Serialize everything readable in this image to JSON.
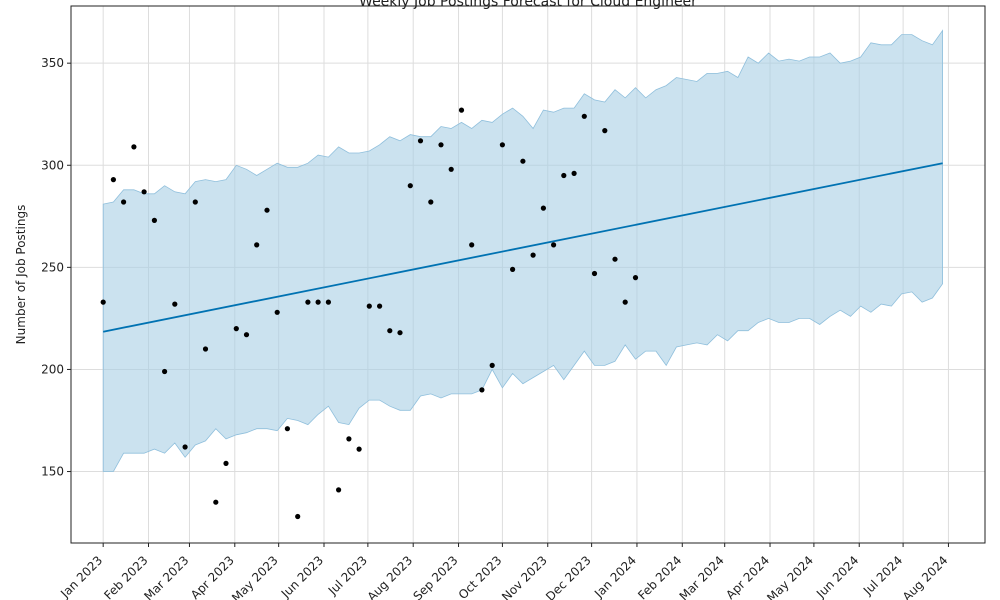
{
  "chart_data": {
    "type": "line",
    "title": "Weekly Job Postings Forecast for Cloud Engineer",
    "xlabel": "",
    "ylabel": "Number of Job Postings",
    "ylim": [
      115,
      378
    ],
    "xlim": [
      "2022-12-10",
      "2024-08-26"
    ],
    "grid": true,
    "y_ticks": [
      150,
      200,
      250,
      300,
      350
    ],
    "x_ticks": [
      {
        "label": "Jan 2023",
        "date": "2023-01-01"
      },
      {
        "label": "Feb 2023",
        "date": "2023-02-01"
      },
      {
        "label": "Mar 2023",
        "date": "2023-03-01"
      },
      {
        "label": "Apr 2023",
        "date": "2023-04-01"
      },
      {
        "label": "May 2023",
        "date": "2023-05-01"
      },
      {
        "label": "Jun 2023",
        "date": "2023-06-01"
      },
      {
        "label": "Jul 2023",
        "date": "2023-07-01"
      },
      {
        "label": "Aug 2023",
        "date": "2023-08-01"
      },
      {
        "label": "Sep 2023",
        "date": "2023-09-01"
      },
      {
        "label": "Oct 2023",
        "date": "2023-10-01"
      },
      {
        "label": "Nov 2023",
        "date": "2023-11-01"
      },
      {
        "label": "Dec 2023",
        "date": "2023-12-01"
      },
      {
        "label": "Jan 2024",
        "date": "2024-01-01"
      },
      {
        "label": "Feb 2024",
        "date": "2024-02-01"
      },
      {
        "label": "Mar 2024",
        "date": "2024-03-01"
      },
      {
        "label": "Apr 2024",
        "date": "2024-04-01"
      },
      {
        "label": "May 2024",
        "date": "2024-05-01"
      },
      {
        "label": "Jun 2024",
        "date": "2024-06-01"
      },
      {
        "label": "Jul 2024",
        "date": "2024-07-01"
      },
      {
        "label": "Aug 2024",
        "date": "2024-08-01"
      }
    ],
    "colors": {
      "forecast": "#0072B2",
      "band": "#a9cfe4",
      "band_edge": "#8fbfdc",
      "points": "#000000"
    },
    "observed": {
      "x": [
        "2023-01-01",
        "2023-01-08",
        "2023-01-15",
        "2023-01-22",
        "2023-01-29",
        "2023-02-05",
        "2023-02-12",
        "2023-02-19",
        "2023-02-26",
        "2023-03-05",
        "2023-03-12",
        "2023-03-19",
        "2023-03-26",
        "2023-04-02",
        "2023-04-09",
        "2023-04-16",
        "2023-04-23",
        "2023-04-30",
        "2023-05-07",
        "2023-05-14",
        "2023-05-21",
        "2023-05-28",
        "2023-06-04",
        "2023-06-11",
        "2023-06-18",
        "2023-06-25",
        "2023-07-02",
        "2023-07-09",
        "2023-07-16",
        "2023-07-23",
        "2023-07-30",
        "2023-08-06",
        "2023-08-13",
        "2023-08-20",
        "2023-08-27",
        "2023-09-03",
        "2023-09-10",
        "2023-09-17",
        "2023-09-24",
        "2023-10-01",
        "2023-10-08",
        "2023-10-15",
        "2023-10-22",
        "2023-10-29",
        "2023-11-05",
        "2023-11-12",
        "2023-11-19",
        "2023-11-26",
        "2023-12-03",
        "2023-12-10",
        "2023-12-17",
        "2023-12-24",
        "2023-12-31"
      ],
      "y": [
        233,
        293,
        282,
        309,
        287,
        273,
        199,
        232,
        162,
        282,
        210,
        135,
        154,
        220,
        217,
        261,
        278,
        228,
        171,
        128,
        233,
        233,
        233,
        141,
        166,
        161,
        231,
        231,
        219,
        218,
        290,
        312,
        282,
        310,
        298,
        327,
        261,
        190,
        202,
        310,
        249,
        302,
        256,
        279,
        261,
        295,
        296,
        324,
        247,
        317,
        254,
        233,
        245
      ]
    },
    "forecast": {
      "x": [
        "2023-01-01",
        "2024-07-28"
      ],
      "y": [
        218.5,
        301
      ]
    },
    "interval": {
      "x": [
        "2023-01-01",
        "2023-01-08",
        "2023-01-15",
        "2023-01-22",
        "2023-01-29",
        "2023-02-05",
        "2023-02-12",
        "2023-02-19",
        "2023-02-26",
        "2023-03-05",
        "2023-03-12",
        "2023-03-19",
        "2023-03-26",
        "2023-04-02",
        "2023-04-09",
        "2023-04-16",
        "2023-04-23",
        "2023-04-30",
        "2023-05-07",
        "2023-05-14",
        "2023-05-21",
        "2023-05-28",
        "2023-06-04",
        "2023-06-11",
        "2023-06-18",
        "2023-06-25",
        "2023-07-02",
        "2023-07-09",
        "2023-07-16",
        "2023-07-23",
        "2023-07-30",
        "2023-08-06",
        "2023-08-13",
        "2023-08-20",
        "2023-08-27",
        "2023-09-03",
        "2023-09-10",
        "2023-09-17",
        "2023-09-24",
        "2023-10-01",
        "2023-10-08",
        "2023-10-15",
        "2023-10-22",
        "2023-10-29",
        "2023-11-05",
        "2023-11-12",
        "2023-11-19",
        "2023-11-26",
        "2023-12-03",
        "2023-12-10",
        "2023-12-17",
        "2023-12-24",
        "2023-12-31",
        "2024-01-07",
        "2024-01-14",
        "2024-01-21",
        "2024-01-28",
        "2024-02-04",
        "2024-02-11",
        "2024-02-18",
        "2024-02-25",
        "2024-03-03",
        "2024-03-10",
        "2024-03-17",
        "2024-03-24",
        "2024-03-31",
        "2024-04-07",
        "2024-04-14",
        "2024-04-21",
        "2024-04-28",
        "2024-05-05",
        "2024-05-12",
        "2024-05-19",
        "2024-05-26",
        "2024-06-02",
        "2024-06-09",
        "2024-06-16",
        "2024-06-23",
        "2024-06-30",
        "2024-07-07",
        "2024-07-14",
        "2024-07-21",
        "2024-07-28"
      ],
      "upper": [
        281,
        282,
        288,
        288,
        286,
        286,
        290,
        287,
        286,
        292,
        293,
        292,
        293,
        300,
        298,
        295,
        298,
        301,
        299,
        299,
        301,
        305,
        304,
        309,
        306,
        306,
        307,
        310,
        314,
        312,
        315,
        314,
        314,
        319,
        318,
        321,
        318,
        322,
        321,
        325,
        328,
        324,
        318,
        327,
        326,
        328,
        328,
        335,
        332,
        331,
        337,
        333,
        338,
        333,
        337,
        339,
        343,
        342,
        341,
        345,
        345,
        346,
        343,
        353,
        350,
        355,
        351,
        352,
        351,
        353,
        353,
        355,
        350,
        351,
        353,
        360,
        359,
        359,
        364,
        364,
        361,
        359,
        366
      ],
      "lower": [
        150,
        150,
        159,
        159,
        159,
        161,
        159,
        164,
        157,
        163,
        165,
        171,
        166,
        168,
        169,
        171,
        171,
        170,
        176,
        175,
        173,
        178,
        182,
        174,
        173,
        181,
        185,
        185,
        182,
        180,
        180,
        187,
        188,
        186,
        188,
        188,
        188,
        190,
        200,
        191,
        198,
        193,
        196,
        199,
        202,
        195,
        202,
        209,
        202,
        202,
        204,
        212,
        205,
        209,
        209,
        202,
        211,
        212,
        213,
        212,
        217,
        214,
        219,
        219,
        223,
        225,
        223,
        223,
        225,
        225,
        222,
        226,
        229,
        226,
        231,
        228,
        232,
        231,
        237,
        238,
        233,
        235,
        242
      ]
    }
  }
}
